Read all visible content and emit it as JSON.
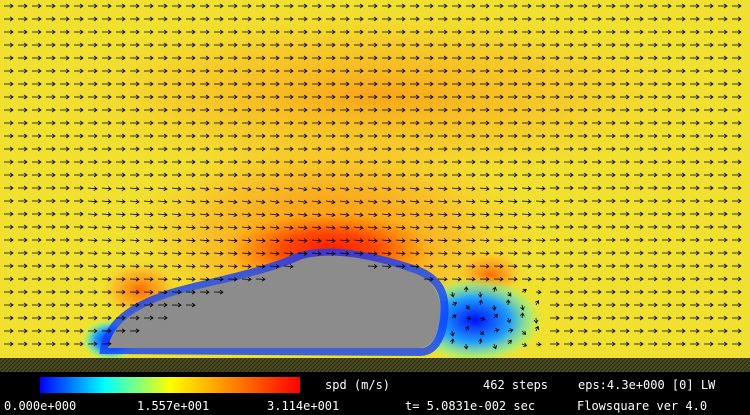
{
  "colorbar": {
    "label": "spd (m/s)",
    "ticks": [
      "0.000e+000",
      "1.557e+001",
      "3.114e+001"
    ]
  },
  "status": {
    "steps": "462 steps",
    "eps": "eps:4.3e+000 [0] LW",
    "time": "t= 5.0831e-002 sec",
    "version": "Flowsquare ver 4.0"
  }
}
